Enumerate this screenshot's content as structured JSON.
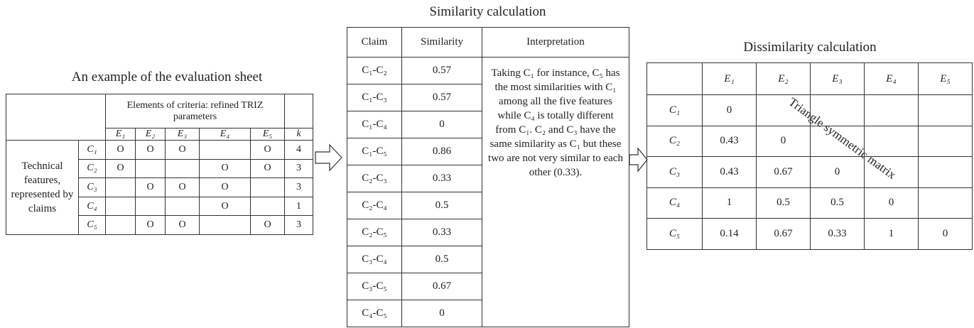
{
  "evaluation_sheet": {
    "title": "An example of the evaluation sheet",
    "criteria_header": "Elements of criteria: refined TRIZ parameters",
    "elements": [
      "E₁",
      "E₂",
      "E₃",
      "E₄",
      "E₅"
    ],
    "k_header": "k",
    "row_group_label": "Technical features, represented by claims",
    "rows": [
      {
        "claim": "C₁",
        "marks": [
          "O",
          "O",
          "O",
          null,
          "O"
        ],
        "k": 4
      },
      {
        "claim": "C₂",
        "marks": [
          "O",
          null,
          null,
          "O",
          "O"
        ],
        "k": 3
      },
      {
        "claim": "C₃",
        "marks": [
          null,
          "O",
          "O",
          "O",
          null
        ],
        "k": 3
      },
      {
        "claim": "C₄",
        "marks": [
          null,
          null,
          null,
          "O",
          null
        ],
        "k": 1
      },
      {
        "claim": "C₅",
        "marks": [
          null,
          "O",
          "O",
          null,
          "O"
        ],
        "k": 3
      }
    ]
  },
  "similarity": {
    "title": "Similarity  calculation",
    "headers": [
      "Claim",
      "Similarity",
      "Interpretation"
    ],
    "rows": [
      {
        "claim": "C₁-C₂",
        "value": 0.57
      },
      {
        "claim": "C₁-C₃",
        "value": 0.57
      },
      {
        "claim": "C₁-C₄",
        "value": 0
      },
      {
        "claim": "C₁-C₅",
        "value": 0.86
      },
      {
        "claim": "C₂-C₃",
        "value": 0.33
      },
      {
        "claim": "C₂-C₄",
        "value": 0.5
      },
      {
        "claim": "C₂-C₅",
        "value": 0.33
      },
      {
        "claim": "C₃-C₄",
        "value": 0.5
      },
      {
        "claim": "C₃-C₅",
        "value": 0.67
      },
      {
        "claim": "C₄-C₅",
        "value": 0
      }
    ],
    "interpretation": "Taking C₁ for instance, C₅ has the most similarities with C₁ among all the five features while C₄ is totally different from C₁. C₂ and C₃ have the same similarity as C₁ but these two are not very similar to each other (0.33)."
  },
  "dissimilarity": {
    "title": "Dissimilarity  calculation",
    "columns": [
      "E₁",
      "E₂",
      "E₃",
      "E₄",
      "E₅"
    ],
    "rows": [
      {
        "claim": "C₁",
        "values": [
          0,
          null,
          null,
          null,
          null
        ]
      },
      {
        "claim": "C₂",
        "values": [
          0.43,
          0,
          null,
          null,
          null
        ]
      },
      {
        "claim": "C₃",
        "values": [
          0.43,
          0.67,
          0,
          null,
          null
        ]
      },
      {
        "claim": "C₄",
        "values": [
          1,
          0.5,
          0.5,
          0,
          null
        ]
      },
      {
        "claim": "C₅",
        "values": [
          0.14,
          0.67,
          0.33,
          1,
          0
        ]
      }
    ],
    "annotation": "Triangle  symmetric matrix"
  }
}
